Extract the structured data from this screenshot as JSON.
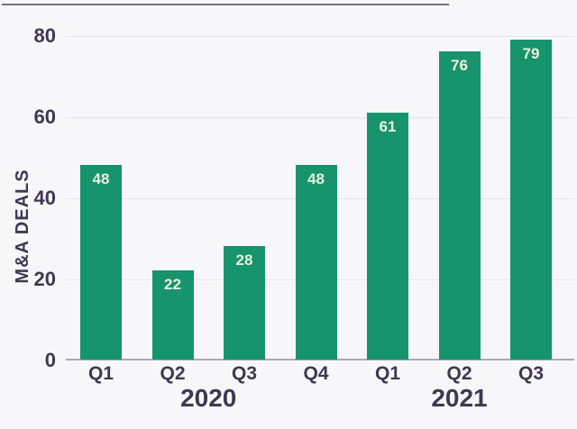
{
  "chart_data": {
    "type": "bar",
    "title": "",
    "ylabel": "M&A DEALS",
    "xlabel": "",
    "categories": [
      "Q1",
      "Q2",
      "Q3",
      "Q4",
      "Q1",
      "Q2",
      "Q3"
    ],
    "values": [
      48,
      22,
      28,
      48,
      61,
      76,
      79
    ],
    "group_labels": [
      {
        "label": "2020",
        "span": [
          0,
          3
        ]
      },
      {
        "label": "2021",
        "span": [
          4,
          6
        ]
      }
    ],
    "yticks": [
      0,
      20,
      40,
      60,
      80
    ],
    "ylim": [
      0,
      80
    ],
    "grid": true,
    "legend": false,
    "colors": {
      "bar": "#17946c",
      "value_label": "#ebf0dd",
      "axis_text": "#3e3852",
      "gridline": "#e4e4ea",
      "axis_line": "#a9a9b2",
      "top_rule": "#75757d",
      "background": "#f7f7f9"
    }
  }
}
